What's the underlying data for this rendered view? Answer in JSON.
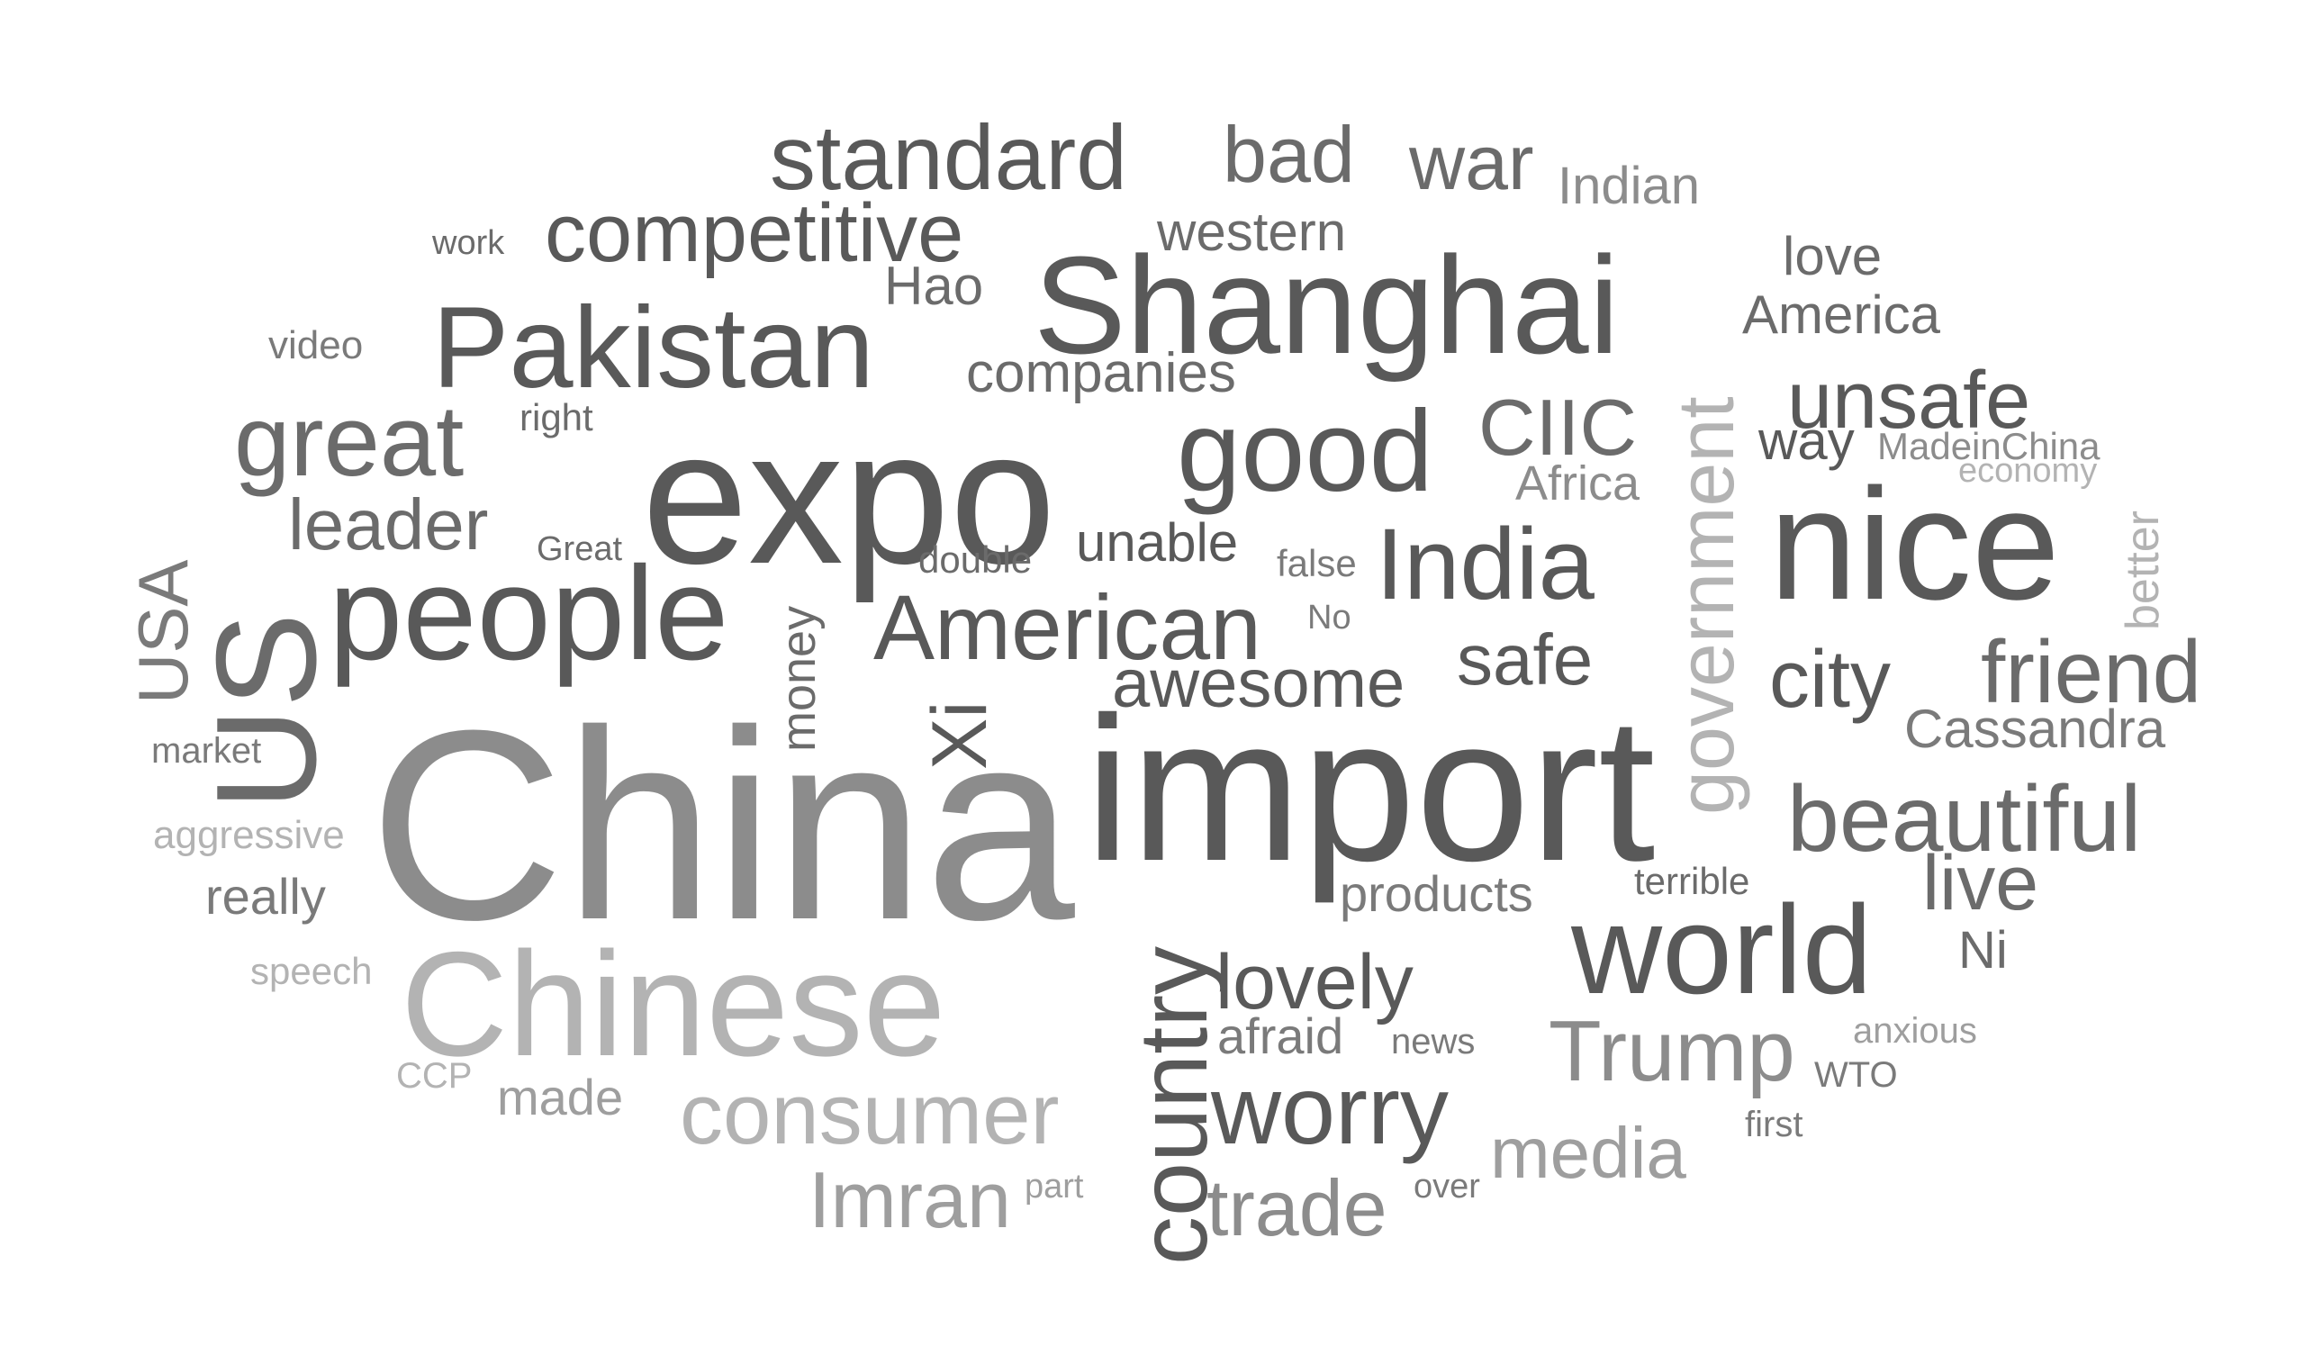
{
  "palette": {
    "dark": "#4d4d4d",
    "dark2": "#595959",
    "mid": "#6b6b6b",
    "mid2": "#7a7a7a",
    "light": "#8c8c8c",
    "light2": "#9e9e9e",
    "lighter": "#b3b3b3"
  },
  "words": [
    {
      "name": "china",
      "text": "China",
      "shade": "light"
    },
    {
      "name": "import",
      "text": "import",
      "shade": "dark2"
    },
    {
      "name": "expo",
      "text": "expo",
      "shade": "dark2"
    },
    {
      "name": "nice",
      "text": "nice",
      "shade": "dark2"
    },
    {
      "name": "shanghai",
      "text": "Shanghai",
      "shade": "dark2"
    },
    {
      "name": "chinese",
      "text": "Chinese",
      "shade": "lighter"
    },
    {
      "name": "world",
      "text": "world",
      "shade": "dark2"
    },
    {
      "name": "people",
      "text": "people",
      "shade": "dark2"
    },
    {
      "name": "us",
      "text": "US",
      "shade": "mid"
    },
    {
      "name": "good",
      "text": "good",
      "shade": "dark2"
    },
    {
      "name": "pakistan",
      "text": "Pakistan",
      "shade": "dark2"
    },
    {
      "name": "india",
      "text": "India",
      "shade": "dark2"
    },
    {
      "name": "government",
      "text": "government",
      "shade": "lighter"
    },
    {
      "name": "country",
      "text": "country",
      "shade": "dark2"
    },
    {
      "name": "great",
      "text": "great",
      "shade": "mid"
    },
    {
      "name": "standard",
      "text": "standard",
      "shade": "dark2"
    },
    {
      "name": "competitive",
      "text": "competitive",
      "shade": "dark2"
    },
    {
      "name": "american",
      "text": "American",
      "shade": "dark2"
    },
    {
      "name": "consumer",
      "text": "consumer",
      "shade": "lighter"
    },
    {
      "name": "worry",
      "text": "worry",
      "shade": "dark2"
    },
    {
      "name": "beautiful",
      "text": "beautiful",
      "shade": "mid"
    },
    {
      "name": "unsafe",
      "text": "unsafe",
      "shade": "dark2"
    },
    {
      "name": "trump",
      "text": "Trump",
      "shade": "light"
    },
    {
      "name": "friend",
      "text": "friend",
      "shade": "mid"
    },
    {
      "name": "bad",
      "text": "bad",
      "shade": "mid"
    },
    {
      "name": "ciic",
      "text": "CIIC",
      "shade": "mid"
    },
    {
      "name": "city",
      "text": "city",
      "shade": "dark2"
    },
    {
      "name": "imran",
      "text": "Imran",
      "shade": "light2"
    },
    {
      "name": "lovely",
      "text": "lovely",
      "shade": "dark2"
    },
    {
      "name": "awesome",
      "text": "awesome",
      "shade": "dark2"
    },
    {
      "name": "leader",
      "text": "leader",
      "shade": "mid"
    },
    {
      "name": "trade",
      "text": "trade",
      "shade": "light"
    },
    {
      "name": "media",
      "text": "media",
      "shade": "light2"
    },
    {
      "name": "war",
      "text": "war",
      "shade": "mid"
    },
    {
      "name": "safe",
      "text": "safe",
      "shade": "dark2"
    },
    {
      "name": "live",
      "text": "live",
      "shade": "mid"
    },
    {
      "name": "usa",
      "text": "USA",
      "shade": "mid2"
    },
    {
      "name": "xi",
      "text": "Xi",
      "shade": "dark2"
    },
    {
      "name": "companies",
      "text": "companies",
      "shade": "mid"
    },
    {
      "name": "cassandra",
      "text": "Cassandra",
      "shade": "mid2"
    },
    {
      "name": "america",
      "text": "America",
      "shade": "mid"
    },
    {
      "name": "indian",
      "text": "Indian",
      "shade": "light"
    },
    {
      "name": "western",
      "text": "western",
      "shade": "mid"
    },
    {
      "name": "love",
      "text": "love",
      "shade": "mid"
    },
    {
      "name": "hao",
      "text": "Hao",
      "shade": "mid"
    },
    {
      "name": "products",
      "text": "products",
      "shade": "mid2"
    },
    {
      "name": "unable",
      "text": "unable",
      "shade": "dark2"
    },
    {
      "name": "africa",
      "text": "Africa",
      "shade": "light"
    },
    {
      "name": "way",
      "text": "way",
      "shade": "dark2"
    },
    {
      "name": "really",
      "text": "really",
      "shade": "mid2"
    },
    {
      "name": "afraid",
      "text": "afraid",
      "shade": "mid2"
    },
    {
      "name": "made",
      "text": "made",
      "shade": "light2"
    },
    {
      "name": "ni",
      "text": "Ni",
      "shade": "mid"
    },
    {
      "name": "money",
      "text": "money",
      "shade": "mid"
    },
    {
      "name": "better",
      "text": "better",
      "shade": "lighter"
    },
    {
      "name": "madeinchina",
      "text": "MadeinChina",
      "shade": "light"
    },
    {
      "name": "video",
      "text": "video",
      "shade": "mid2"
    },
    {
      "name": "aggressive",
      "text": "aggressive",
      "shade": "lighter"
    },
    {
      "name": "double",
      "text": "double",
      "shade": "mid"
    },
    {
      "name": "false",
      "text": "false",
      "shade": "mid2"
    },
    {
      "name": "right",
      "text": "right",
      "shade": "mid"
    },
    {
      "name": "speech",
      "text": "speech",
      "shade": "lighter"
    },
    {
      "name": "terrible",
      "text": "terrible",
      "shade": "mid"
    },
    {
      "name": "market",
      "text": "market",
      "shade": "mid2"
    },
    {
      "name": "economy",
      "text": "economy",
      "shade": "lighter"
    },
    {
      "name": "great-caps",
      "text": "Great",
      "shade": "mid"
    },
    {
      "name": "news",
      "text": "news",
      "shade": "mid2"
    },
    {
      "name": "anxious",
      "text": "anxious",
      "shade": "light2"
    },
    {
      "name": "ccp",
      "text": "CCP",
      "shade": "lighter"
    },
    {
      "name": "wto",
      "text": "WTO",
      "shade": "mid2"
    },
    {
      "name": "first",
      "text": "first",
      "shade": "mid2"
    },
    {
      "name": "part",
      "text": "part",
      "shade": "light2"
    },
    {
      "name": "over",
      "text": "over",
      "shade": "mid2"
    },
    {
      "name": "work",
      "text": "work",
      "shade": "mid"
    },
    {
      "name": "no",
      "text": "No",
      "shade": "mid2"
    }
  ]
}
